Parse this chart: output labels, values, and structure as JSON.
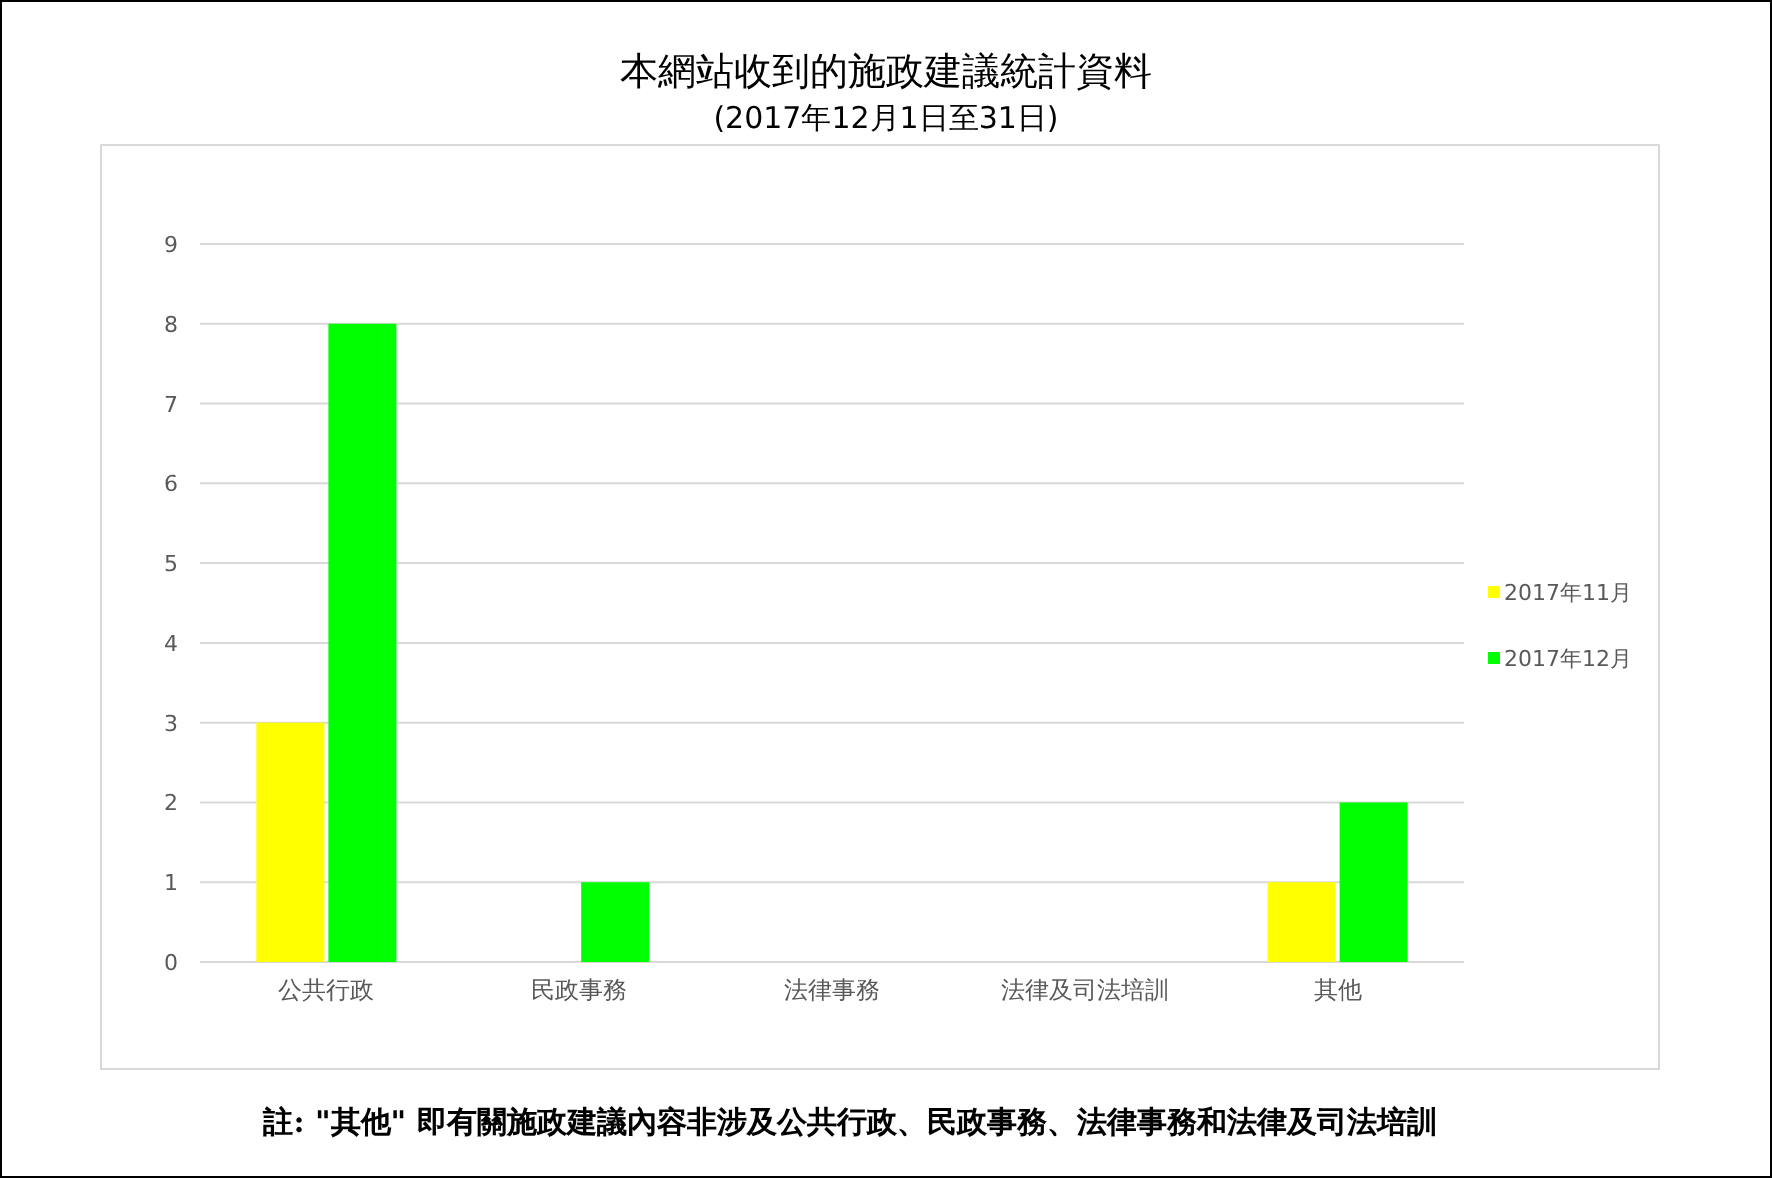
{
  "chart_data": {
    "type": "bar",
    "title": "本網站收到的施政建議統計資料",
    "subtitle": "(2017年12月1日至31日)",
    "categories": [
      "公共行政",
      "民政事務",
      "法律事務",
      "法律及司法培訓",
      "其他"
    ],
    "series": [
      {
        "name": "2017年11月",
        "color": "#ffff00",
        "values": [
          3,
          0,
          0,
          0,
          1
        ]
      },
      {
        "name": "2017年12月",
        "color": "#00ff00",
        "values": [
          8,
          1,
          0,
          0,
          2
        ]
      }
    ],
    "ylim": [
      0,
      9
    ],
    "yticks": [
      0,
      1,
      2,
      3,
      4,
      5,
      6,
      7,
      8,
      9
    ],
    "grid": "y",
    "legend": "right",
    "annotations": [
      "註: \"其他\" 即有關施政建議內容非涉及公共行政、民政事務、法律事務和法律及司法培訓"
    ]
  }
}
